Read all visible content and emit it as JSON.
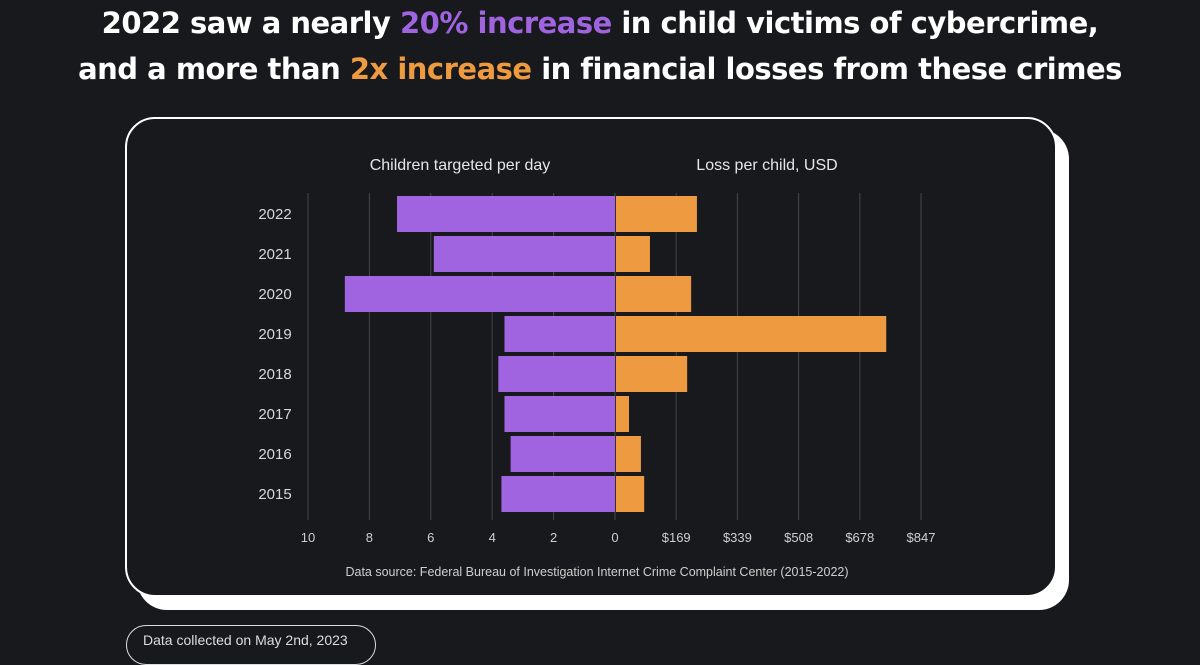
{
  "headline": {
    "line1_pre": "2022 saw a nearly ",
    "line1_hl": "20% increase",
    "line1_post": " in child victims of cybercrime,",
    "line2_pre": "and a more than ",
    "line2_hl": "2x increase",
    "line2_post": " in financial losses from these crimes"
  },
  "colors": {
    "purple": "#a064e0",
    "orange": "#ee9a40"
  },
  "chart_data": {
    "type": "bar",
    "orientation": "horizontal-butterfly",
    "categories": [
      "2022",
      "2021",
      "2020",
      "2019",
      "2018",
      "2017",
      "2016",
      "2015"
    ],
    "series": [
      {
        "name": "Children targeted per day",
        "values": [
          7.1,
          5.9,
          8.8,
          3.6,
          3.8,
          3.6,
          3.4,
          3.7
        ],
        "xlim": [
          0,
          10
        ],
        "ticks": [
          "10",
          "8",
          "6",
          "4",
          "2",
          "0"
        ]
      },
      {
        "name": "Loss per child, USD",
        "values": [
          224,
          94,
          208,
          748,
          197,
          36,
          69,
          78
        ],
        "xlim": [
          0,
          847
        ],
        "ticks": [
          "$169",
          "$339",
          "$508",
          "$678",
          "$847"
        ]
      }
    ],
    "source": "Data source: Federal Bureau of Investigation Internet Crime Complaint Center (2015-2022)"
  },
  "footer": {
    "date_label": "Data collected on May 2nd, 2023"
  }
}
